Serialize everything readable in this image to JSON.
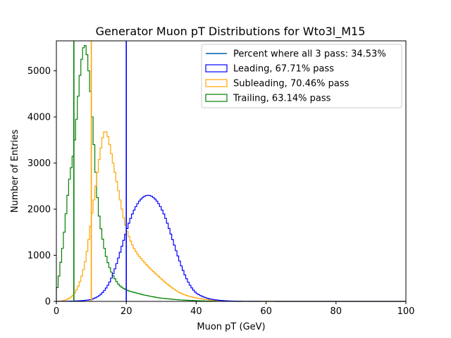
{
  "chart_data": {
    "type": "histogram",
    "title": "Generator Muon pT Distributions for Wto3l_M15",
    "xlabel": "Muon pT (GeV)",
    "ylabel": "Number of Entries",
    "xlim": [
      0,
      100
    ],
    "ylim": [
      0,
      5650
    ],
    "xticks": [
      0,
      20,
      40,
      60,
      80,
      100
    ],
    "yticks": [
      0,
      1000,
      2000,
      3000,
      4000,
      5000
    ],
    "bin_width": 0.5,
    "grid": false,
    "legend_position": "top-right",
    "legend": [
      {
        "label": "Percent where all 3 pass: 34.53%",
        "kind": "line",
        "color": "#1f77b4"
      },
      {
        "label": "Leading, 67.71% pass",
        "kind": "box",
        "color": "#0000ff"
      },
      {
        "label": "Subleading, 70.46% pass",
        "kind": "box",
        "color": "#ffa500"
      },
      {
        "label": "Trailing, 63.14% pass",
        "kind": "box",
        "color": "#008000"
      }
    ],
    "vertical_lines": [
      {
        "x": 20,
        "color": "#0000ff"
      },
      {
        "x": 10,
        "color": "#ffa500"
      },
      {
        "x": 5,
        "color": "#008000"
      }
    ],
    "series": [
      {
        "color": "#008000",
        "points": [
          [
            0,
            200
          ],
          [
            0.5,
            400
          ],
          [
            1,
            700
          ],
          [
            1.5,
            1000
          ],
          [
            2,
            1300
          ],
          [
            2.5,
            1700
          ],
          [
            3,
            2100
          ],
          [
            3.5,
            2500
          ],
          [
            4,
            2800
          ],
          [
            4.5,
            3000
          ],
          [
            5,
            3300
          ],
          [
            5.5,
            3700
          ],
          [
            6,
            4200
          ],
          [
            6.5,
            4700
          ],
          [
            7,
            5100
          ],
          [
            7.5,
            5400
          ],
          [
            8,
            5600
          ],
          [
            8.5,
            5500
          ],
          [
            9,
            5200
          ],
          [
            9.5,
            4800
          ],
          [
            10,
            4300
          ],
          [
            10.5,
            3700
          ],
          [
            11,
            3100
          ],
          [
            11.5,
            2500
          ],
          [
            12,
            2000
          ],
          [
            12.5,
            1700
          ],
          [
            13,
            1450
          ],
          [
            13.5,
            1250
          ],
          [
            14,
            1050
          ],
          [
            14.5,
            900
          ],
          [
            15,
            780
          ],
          [
            15.5,
            680
          ],
          [
            16,
            590
          ],
          [
            16.5,
            520
          ],
          [
            17,
            460
          ],
          [
            17.5,
            400
          ],
          [
            18,
            350
          ],
          [
            18.5,
            320
          ],
          [
            19,
            290
          ],
          [
            19.5,
            270
          ],
          [
            20,
            250
          ],
          [
            21,
            220
          ],
          [
            22,
            200
          ],
          [
            23,
            180
          ],
          [
            24,
            160
          ],
          [
            25,
            140
          ],
          [
            26,
            125
          ],
          [
            27,
            110
          ],
          [
            28,
            95
          ],
          [
            29,
            80
          ],
          [
            30,
            70
          ],
          [
            32,
            55
          ],
          [
            34,
            40
          ],
          [
            36,
            30
          ],
          [
            38,
            22
          ],
          [
            40,
            15
          ],
          [
            42,
            10
          ],
          [
            44,
            7
          ],
          [
            46,
            4
          ],
          [
            48,
            2
          ],
          [
            50,
            1
          ],
          [
            52,
            0
          ]
        ]
      },
      {
        "color": "#ffa500",
        "points": [
          [
            0,
            0
          ],
          [
            1,
            5
          ],
          [
            2,
            15
          ],
          [
            3,
            40
          ],
          [
            4,
            80
          ],
          [
            5,
            150
          ],
          [
            6,
            280
          ],
          [
            7,
            480
          ],
          [
            8,
            760
          ],
          [
            8.5,
            960
          ],
          [
            9,
            1200
          ],
          [
            9.5,
            1480
          ],
          [
            10,
            1780
          ],
          [
            10.5,
            2050
          ],
          [
            11,
            2350
          ],
          [
            11.5,
            2650
          ],
          [
            12,
            2950
          ],
          [
            12.5,
            3200
          ],
          [
            13,
            3450
          ],
          [
            13.5,
            3650
          ],
          [
            14,
            3700
          ],
          [
            14.5,
            3650
          ],
          [
            15,
            3500
          ],
          [
            15.5,
            3300
          ],
          [
            16,
            3100
          ],
          [
            16.5,
            2900
          ],
          [
            17,
            2700
          ],
          [
            17.5,
            2500
          ],
          [
            18,
            2300
          ],
          [
            18.5,
            2100
          ],
          [
            19,
            1900
          ],
          [
            19.5,
            1730
          ],
          [
            20,
            1580
          ],
          [
            21,
            1350
          ],
          [
            22,
            1180
          ],
          [
            23,
            1050
          ],
          [
            24,
            950
          ],
          [
            25,
            860
          ],
          [
            26,
            780
          ],
          [
            27,
            700
          ],
          [
            28,
            630
          ],
          [
            29,
            560
          ],
          [
            30,
            490
          ],
          [
            31,
            420
          ],
          [
            32,
            360
          ],
          [
            33,
            300
          ],
          [
            34,
            250
          ],
          [
            35,
            200
          ],
          [
            36,
            165
          ],
          [
            37,
            135
          ],
          [
            38,
            110
          ],
          [
            40,
            75
          ],
          [
            42,
            50
          ],
          [
            44,
            32
          ],
          [
            46,
            20
          ],
          [
            48,
            12
          ],
          [
            50,
            7
          ],
          [
            52,
            4
          ],
          [
            54,
            2
          ],
          [
            56,
            1
          ],
          [
            58,
            0
          ]
        ]
      },
      {
        "color": "#0000ff",
        "points": [
          [
            0,
            0
          ],
          [
            2,
            2
          ],
          [
            4,
            5
          ],
          [
            6,
            10
          ],
          [
            8,
            20
          ],
          [
            10,
            40
          ],
          [
            11,
            70
          ],
          [
            12,
            110
          ],
          [
            13,
            170
          ],
          [
            14,
            260
          ],
          [
            15,
            380
          ],
          [
            15.5,
            460
          ],
          [
            16,
            550
          ],
          [
            16.5,
            650
          ],
          [
            17,
            760
          ],
          [
            17.5,
            880
          ],
          [
            18,
            1000
          ],
          [
            18.5,
            1130
          ],
          [
            19,
            1260
          ],
          [
            19.5,
            1390
          ],
          [
            20,
            1520
          ],
          [
            20.5,
            1640
          ],
          [
            21,
            1750
          ],
          [
            21.5,
            1850
          ],
          [
            22,
            1940
          ],
          [
            22.5,
            2020
          ],
          [
            23,
            2090
          ],
          [
            23.5,
            2150
          ],
          [
            24,
            2200
          ],
          [
            24.5,
            2240
          ],
          [
            25,
            2270
          ],
          [
            25.5,
            2290
          ],
          [
            26,
            2300
          ],
          [
            26.5,
            2300
          ],
          [
            27,
            2290
          ],
          [
            27.5,
            2270
          ],
          [
            28,
            2240
          ],
          [
            28.5,
            2200
          ],
          [
            29,
            2150
          ],
          [
            29.5,
            2090
          ],
          [
            30,
            2020
          ],
          [
            30.5,
            1940
          ],
          [
            31,
            1850
          ],
          [
            31.5,
            1750
          ],
          [
            32,
            1640
          ],
          [
            32.5,
            1520
          ],
          [
            33,
            1400
          ],
          [
            33.5,
            1280
          ],
          [
            34,
            1160
          ],
          [
            34.5,
            1040
          ],
          [
            35,
            930
          ],
          [
            35.5,
            820
          ],
          [
            36,
            720
          ],
          [
            36.5,
            620
          ],
          [
            37,
            530
          ],
          [
            37.5,
            450
          ],
          [
            38,
            380
          ],
          [
            38.5,
            320
          ],
          [
            39,
            265
          ],
          [
            39.5,
            220
          ],
          [
            40,
            180
          ],
          [
            41,
            135
          ],
          [
            42,
            100
          ],
          [
            43,
            72
          ],
          [
            44,
            52
          ],
          [
            45,
            38
          ],
          [
            46,
            28
          ],
          [
            48,
            15
          ],
          [
            50,
            8
          ],
          [
            52,
            4
          ],
          [
            55,
            2
          ],
          [
            60,
            1
          ],
          [
            65,
            0
          ],
          [
            70,
            0
          ]
        ]
      }
    ]
  }
}
